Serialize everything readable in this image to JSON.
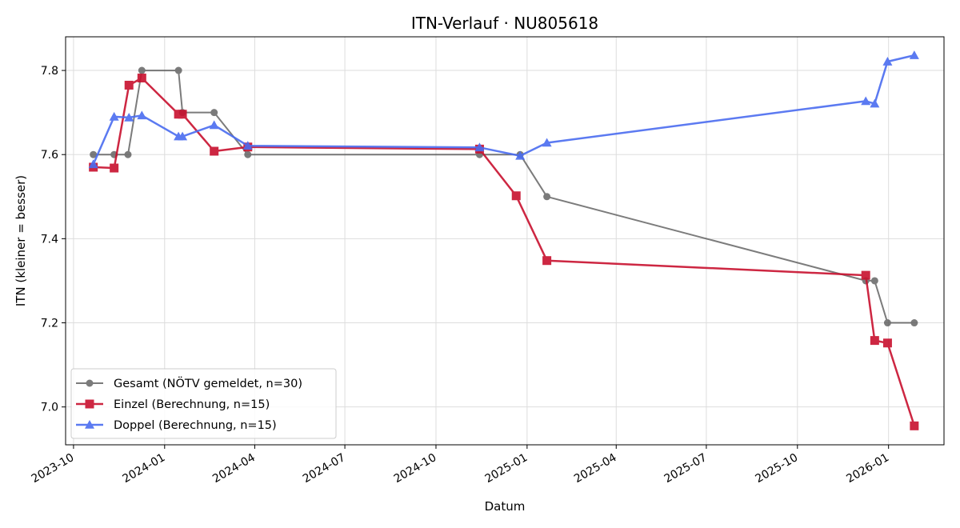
{
  "chart_data": {
    "type": "line",
    "title": "ITN-Verlauf · NU805618",
    "xlabel": "Datum",
    "ylabel": "ITN  (kleiner = besser)",
    "x_axis_type": "date",
    "xlim": [
      "2023-09-23",
      "2026-02-26"
    ],
    "ylim": [
      6.91,
      7.88
    ],
    "x_ticks": [
      "2023-10-01",
      "2024-01-01",
      "2024-04-01",
      "2024-07-01",
      "2024-10-01",
      "2025-01-01",
      "2025-04-01",
      "2025-07-01",
      "2025-10-01",
      "2026-01-01"
    ],
    "x_tick_labels": [
      "2023-10",
      "2024-01",
      "2024-04",
      "2024-07",
      "2024-10",
      "2025-01",
      "2025-04",
      "2025-07",
      "2025-10",
      "2026-01"
    ],
    "y_ticks": [
      7.0,
      7.2,
      7.4,
      7.6,
      7.8
    ],
    "y_tick_labels": [
      "7.0",
      "7.2",
      "7.4",
      "7.6",
      "7.8"
    ],
    "grid": true,
    "legend_position": "lower-left",
    "series": [
      {
        "name": "Gesamt (NÖTV gemeldet, n=30)",
        "color": "#444444",
        "marker": "circle",
        "points": [
          {
            "x": "2023-10-21",
            "y": 7.6
          },
          {
            "x": "2023-11-11",
            "y": 7.6
          },
          {
            "x": "2023-11-25",
            "y": 7.6
          },
          {
            "x": "2023-12-09",
            "y": 7.8
          },
          {
            "x": "2024-01-15",
            "y": 7.8
          },
          {
            "x": "2024-01-19",
            "y": 7.7
          },
          {
            "x": "2024-02-20",
            "y": 7.7
          },
          {
            "x": "2024-03-25",
            "y": 7.6
          },
          {
            "x": "2024-11-14",
            "y": 7.6
          },
          {
            "x": "2024-12-25",
            "y": 7.6
          },
          {
            "x": "2025-01-21",
            "y": 7.5
          },
          {
            "x": "2025-12-09",
            "y": 7.3
          },
          {
            "x": "2025-12-18",
            "y": 7.3
          },
          {
            "x": "2025-12-31",
            "y": 7.2
          },
          {
            "x": "2026-01-27",
            "y": 7.2
          }
        ]
      },
      {
        "name": "Einzel (Berechnung, n=15)",
        "color": "#c8102e",
        "marker": "square",
        "points": [
          {
            "x": "2023-10-21",
            "y": 7.57
          },
          {
            "x": "2023-11-11",
            "y": 7.568
          },
          {
            "x": "2023-11-26",
            "y": 7.765
          },
          {
            "x": "2023-12-09",
            "y": 7.782
          },
          {
            "x": "2024-01-15",
            "y": 7.696
          },
          {
            "x": "2024-01-19",
            "y": 7.696
          },
          {
            "x": "2024-02-20",
            "y": 7.608
          },
          {
            "x": "2024-03-25",
            "y": 7.618
          },
          {
            "x": "2024-11-14",
            "y": 7.613
          },
          {
            "x": "2024-12-21",
            "y": 7.502
          },
          {
            "x": "2025-01-21",
            "y": 7.348
          },
          {
            "x": "2025-12-09",
            "y": 7.313
          },
          {
            "x": "2025-12-18",
            "y": 7.158
          },
          {
            "x": "2025-12-31",
            "y": 7.152
          },
          {
            "x": "2026-01-27",
            "y": 6.955
          }
        ]
      },
      {
        "name": "Doppel (Berechnung, n=15)",
        "color": "#4a6cf0",
        "marker": "triangle",
        "points": [
          {
            "x": "2023-10-21",
            "y": 7.577
          },
          {
            "x": "2023-11-11",
            "y": 7.69
          },
          {
            "x": "2023-11-26",
            "y": 7.688
          },
          {
            "x": "2023-12-09",
            "y": 7.693
          },
          {
            "x": "2024-01-15",
            "y": 7.643
          },
          {
            "x": "2024-01-19",
            "y": 7.643
          },
          {
            "x": "2024-02-20",
            "y": 7.67
          },
          {
            "x": "2024-03-25",
            "y": 7.621
          },
          {
            "x": "2024-11-14",
            "y": 7.617
          },
          {
            "x": "2024-12-25",
            "y": 7.597
          },
          {
            "x": "2025-01-21",
            "y": 7.628
          },
          {
            "x": "2025-12-09",
            "y": 7.727
          },
          {
            "x": "2025-12-18",
            "y": 7.721
          },
          {
            "x": "2025-12-31",
            "y": 7.821
          },
          {
            "x": "2026-01-27",
            "y": 7.836
          }
        ]
      }
    ]
  }
}
